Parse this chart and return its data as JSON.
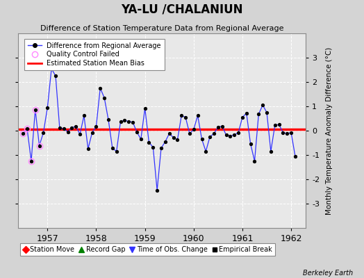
{
  "title": "YA-LU /CHALANIUN",
  "subtitle": "Difference of Station Temperature Data from Regional Average",
  "ylabel_right": "Monthly Temperature Anomaly Difference (°C)",
  "watermark": "Berkeley Earth",
  "ylim": [
    -4,
    4
  ],
  "yticks": [
    -3,
    -2,
    -1,
    0,
    1,
    2,
    3
  ],
  "yticks_minor": [
    -4,
    -3,
    -2,
    -1,
    0,
    1,
    2,
    3,
    4
  ],
  "xlim": [
    1956.4,
    1962.3
  ],
  "xticks": [
    1957,
    1958,
    1959,
    1960,
    1961,
    1962
  ],
  "bias_line_y": 0.05,
  "bias_color": "#ff0000",
  "line_color": "#3333ff",
  "marker_color": "#000000",
  "qc_fail_color": "#ff88ff",
  "fig_bg": "#d4d4d4",
  "ax_bg": "#e8e8e8",
  "time_series": [
    [
      1956.5,
      -0.12
    ],
    [
      1956.583,
      0.08
    ],
    [
      1956.667,
      -1.25
    ],
    [
      1956.75,
      0.87
    ],
    [
      1956.833,
      -0.62
    ],
    [
      1956.917,
      -0.08
    ],
    [
      1957.0,
      0.95
    ],
    [
      1957.083,
      2.55
    ],
    [
      1957.167,
      2.25
    ],
    [
      1957.25,
      0.12
    ],
    [
      1957.333,
      0.08
    ],
    [
      1957.417,
      -0.05
    ],
    [
      1957.5,
      0.12
    ],
    [
      1957.583,
      0.18
    ],
    [
      1957.667,
      -0.15
    ],
    [
      1957.75,
      0.62
    ],
    [
      1957.833,
      -0.75
    ],
    [
      1957.917,
      -0.08
    ],
    [
      1958.0,
      0.18
    ],
    [
      1958.083,
      1.75
    ],
    [
      1958.167,
      1.35
    ],
    [
      1958.25,
      0.45
    ],
    [
      1958.333,
      -0.72
    ],
    [
      1958.417,
      -0.85
    ],
    [
      1958.5,
      0.38
    ],
    [
      1958.583,
      0.42
    ],
    [
      1958.667,
      0.38
    ],
    [
      1958.75,
      0.35
    ],
    [
      1958.833,
      -0.05
    ],
    [
      1958.917,
      -0.35
    ],
    [
      1959.0,
      0.92
    ],
    [
      1959.083,
      -0.48
    ],
    [
      1959.167,
      -0.68
    ],
    [
      1959.25,
      -2.45
    ],
    [
      1959.333,
      -0.72
    ],
    [
      1959.417,
      -0.45
    ],
    [
      1959.5,
      -0.12
    ],
    [
      1959.583,
      -0.28
    ],
    [
      1959.667,
      -0.38
    ],
    [
      1959.75,
      0.62
    ],
    [
      1959.833,
      0.55
    ],
    [
      1959.917,
      -0.12
    ],
    [
      1960.0,
      0.05
    ],
    [
      1960.083,
      0.62
    ],
    [
      1960.167,
      -0.35
    ],
    [
      1960.25,
      -0.85
    ],
    [
      1960.333,
      -0.25
    ],
    [
      1960.417,
      -0.12
    ],
    [
      1960.5,
      0.15
    ],
    [
      1960.583,
      0.18
    ],
    [
      1960.667,
      -0.18
    ],
    [
      1960.75,
      -0.22
    ],
    [
      1960.833,
      -0.18
    ],
    [
      1960.917,
      -0.08
    ],
    [
      1961.0,
      0.55
    ],
    [
      1961.083,
      0.72
    ],
    [
      1961.167,
      -0.55
    ],
    [
      1961.25,
      -1.25
    ],
    [
      1961.333,
      0.68
    ],
    [
      1961.417,
      1.05
    ],
    [
      1961.5,
      0.75
    ],
    [
      1961.583,
      -0.85
    ],
    [
      1961.667,
      0.22
    ],
    [
      1961.75,
      0.25
    ],
    [
      1961.833,
      -0.08
    ],
    [
      1961.917,
      -0.12
    ],
    [
      1962.0,
      -0.08
    ],
    [
      1962.083,
      -1.05
    ]
  ],
  "qc_fail_points": [
    [
      1956.5,
      -0.12
    ],
    [
      1956.583,
      0.08
    ],
    [
      1956.667,
      -1.25
    ],
    [
      1956.75,
      0.87
    ],
    [
      1956.833,
      -0.62
    ]
  ]
}
